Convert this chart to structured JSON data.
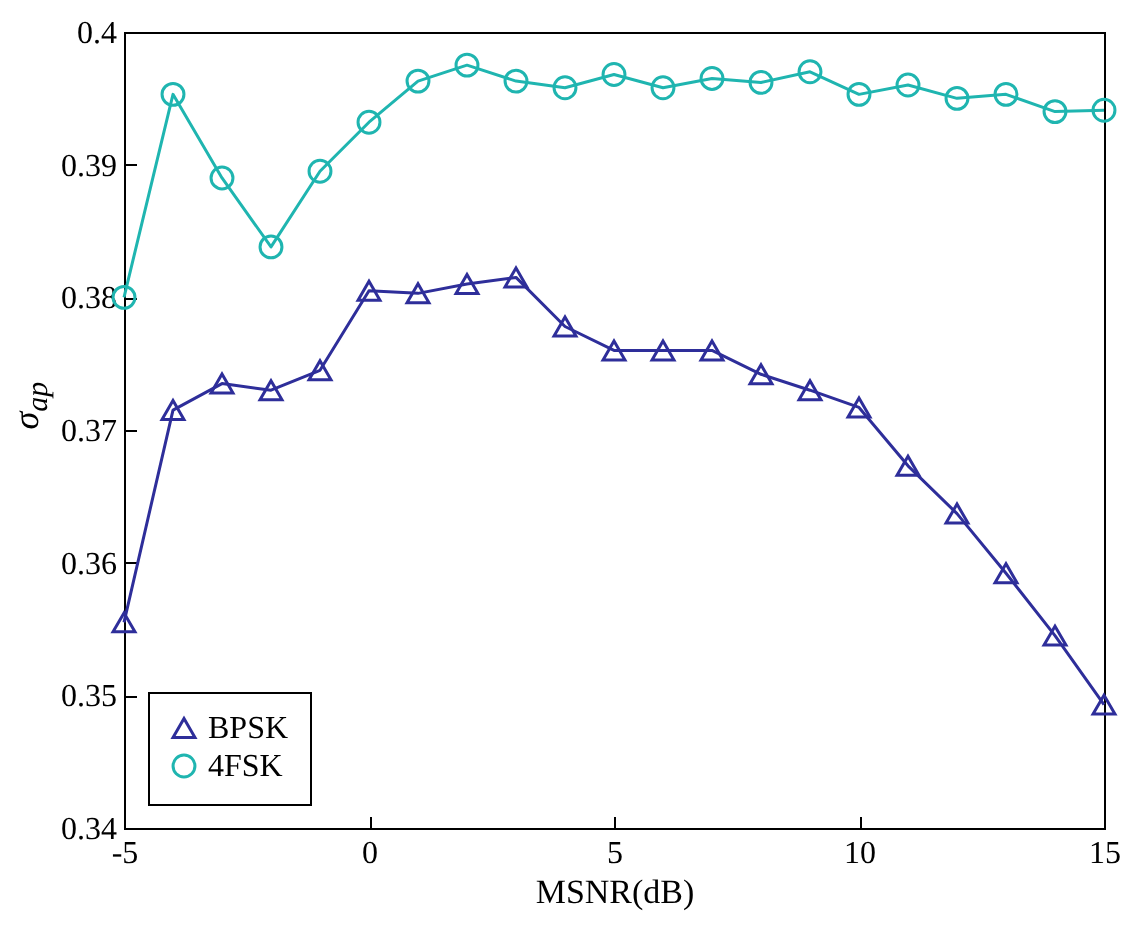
{
  "chart_data": {
    "type": "line",
    "xlabel": "MSNR(dB)",
    "ylabel": "σ$_{ap}$",
    "x": [
      -5,
      -4,
      -3,
      -2,
      -1,
      0,
      1,
      2,
      3,
      4,
      5,
      6,
      7,
      8,
      9,
      10,
      11,
      12,
      13,
      14,
      15
    ],
    "series": [
      {
        "name": "BPSK",
        "color": "#2e2e9a",
        "marker": "triangle",
        "values": [
          0.3555,
          0.3715,
          0.3735,
          0.373,
          0.3745,
          0.3805,
          0.3803,
          0.381,
          0.3815,
          0.3778,
          0.376,
          0.376,
          0.376,
          0.3742,
          0.373,
          0.3717,
          0.3673,
          0.3637,
          0.3592,
          0.3545,
          0.3493
        ]
      },
      {
        "name": "4FSK",
        "color": "#1fb5b0",
        "marker": "circle",
        "values": [
          0.38,
          0.3953,
          0.389,
          0.3838,
          0.3895,
          0.3932,
          0.3963,
          0.3975,
          0.3963,
          0.3958,
          0.3968,
          0.3958,
          0.3965,
          0.3962,
          0.397,
          0.3953,
          0.396,
          0.395,
          0.3953,
          0.394,
          0.3941
        ]
      }
    ],
    "xlim": [
      -5,
      15
    ],
    "xticks": [
      -5,
      0,
      5,
      10,
      15
    ],
    "ylim": [
      0.34,
      0.4
    ],
    "yticks": [
      0.34,
      0.35,
      0.36,
      0.37,
      0.38,
      0.39,
      0.4
    ],
    "grid": false,
    "legend": "bottom left",
    "line_style": "solid"
  }
}
